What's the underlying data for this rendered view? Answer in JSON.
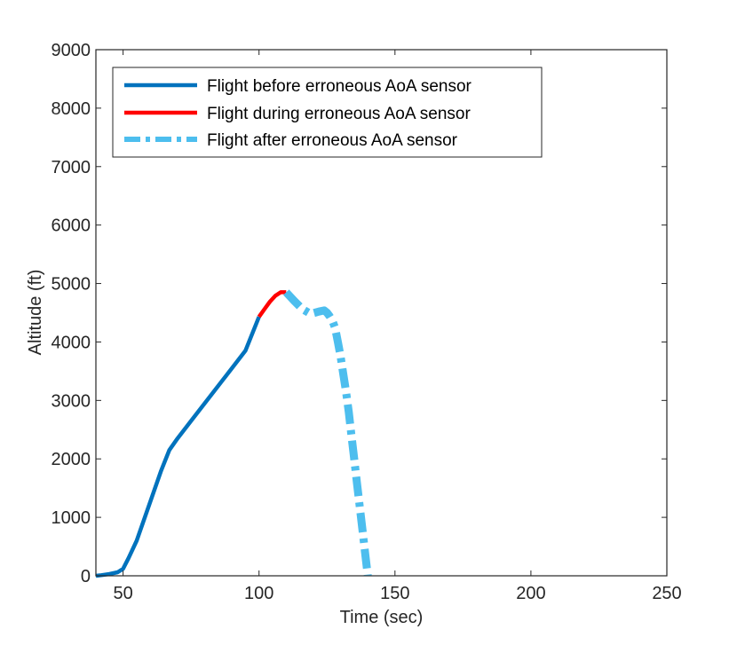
{
  "chart_data": {
    "type": "line",
    "xlabel": "Time (sec)",
    "ylabel": "Altitude (ft)",
    "xlim": [
      40,
      250
    ],
    "ylim": [
      0,
      9000
    ],
    "xticks": [
      50,
      100,
      150,
      200,
      250
    ],
    "yticks": [
      0,
      1000,
      2000,
      3000,
      4000,
      5000,
      6000,
      7000,
      8000,
      9000
    ],
    "grid": false,
    "legend_position": "top-left",
    "series": [
      {
        "name": "Flight before erroneous AoA sensor",
        "color": "#0072BD",
        "style": "solid",
        "x": [
          40,
          42,
          45,
          48,
          50,
          52,
          55,
          58,
          61,
          64,
          67,
          70,
          75,
          80,
          85,
          90,
          95,
          100
        ],
        "y": [
          0,
          10,
          30,
          60,
          120,
          300,
          600,
          1000,
          1400,
          1800,
          2150,
          2350,
          2650,
          2950,
          3250,
          3550,
          3850,
          4430
        ]
      },
      {
        "name": "Flight during erroneous AoA sensor",
        "color": "#FF0000",
        "style": "solid",
        "x": [
          100,
          102,
          104,
          106,
          108,
          110
        ],
        "y": [
          4430,
          4560,
          4690,
          4790,
          4850,
          4850
        ]
      },
      {
        "name": "Flight after erroneous AoA sensor",
        "color": "#4DBEEE",
        "style": "dashdot",
        "x": [
          110,
          113,
          116,
          119,
          122,
          124,
          125,
          126,
          127,
          128,
          129,
          130,
          131,
          132,
          133,
          134,
          135,
          136,
          137,
          138,
          139,
          140
        ],
        "y": [
          4850,
          4700,
          4560,
          4480,
          4520,
          4540,
          4500,
          4440,
          4360,
          4240,
          4000,
          3750,
          3450,
          3150,
          2800,
          2400,
          2000,
          1600,
          1200,
          800,
          400,
          0
        ]
      }
    ]
  }
}
